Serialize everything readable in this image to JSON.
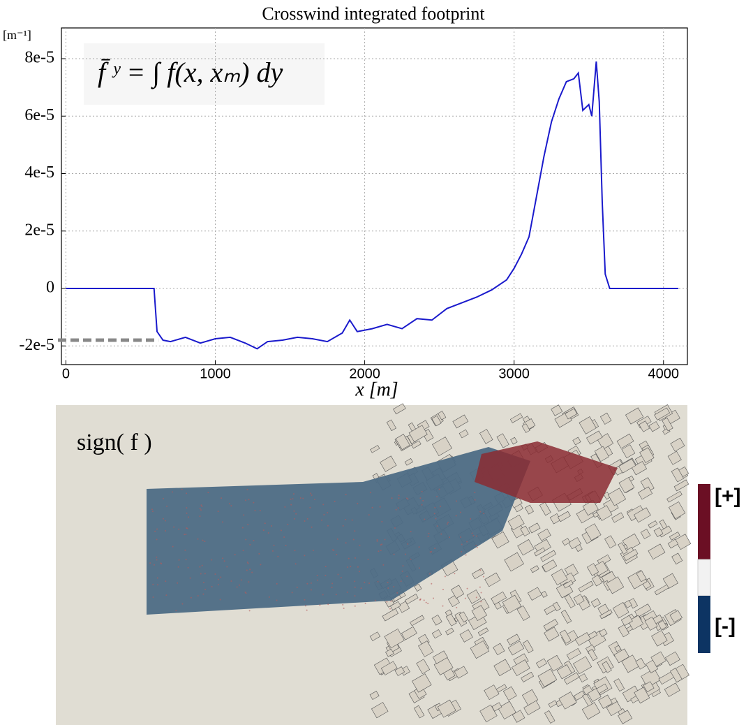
{
  "chart_data": {
    "type": "line",
    "title": "Crosswind integrated footprint",
    "y_unit_label": "[m⁻¹]",
    "x_label": "x  [m]",
    "formula": "f̄ ʸ = ∫ f(x, xₘ) dy",
    "xlim": [
      -30,
      4160
    ],
    "ylim": [
      -2.65e-05,
      9.07e-05
    ],
    "xticks": [
      0,
      1000,
      2000,
      3000,
      4000
    ],
    "yticks": [
      {
        "value": -2e-05,
        "label": "-2e-5"
      },
      0,
      {
        "value": 2e-05,
        "label": "2e-5"
      },
      {
        "value": 4e-05,
        "label": "4e-5"
      },
      {
        "value": 6e-05,
        "label": "6e-5"
      },
      {
        "value": 8e-05,
        "label": "8e-5"
      }
    ],
    "grid": true,
    "x": [
      0,
      590,
      610,
      650,
      700,
      800,
      900,
      1000,
      1100,
      1200,
      1280,
      1350,
      1450,
      1550,
      1650,
      1750,
      1850,
      1900,
      1950,
      2050,
      2150,
      2250,
      2350,
      2450,
      2550,
      2650,
      2750,
      2850,
      2950,
      3000,
      3050,
      3100,
      3150,
      3200,
      3250,
      3300,
      3350,
      3400,
      3430,
      3460,
      3500,
      3520,
      3550,
      3570,
      3590,
      3610,
      3640,
      4100
    ],
    "series": [
      {
        "color": "#1a1acc",
        "values": [
          0,
          0,
          -1.5e-05,
          -1.8e-05,
          -1.85e-05,
          -1.7e-05,
          -1.9e-05,
          -1.75e-05,
          -1.7e-05,
          -1.9e-05,
          -2.1e-05,
          -1.85e-05,
          -1.8e-05,
          -1.7e-05,
          -1.75e-05,
          -1.85e-05,
          -1.55e-05,
          -1.1e-05,
          -1.5e-05,
          -1.4e-05,
          -1.25e-05,
          -1.4e-05,
          -1.05e-05,
          -1.1e-05,
          -7e-06,
          -5e-06,
          -3e-06,
          -5e-07,
          3e-06,
          7e-06,
          1.2e-05,
          1.8e-05,
          3.2e-05,
          4.6e-05,
          5.8e-05,
          6.6e-05,
          7.2e-05,
          7.3e-05,
          7.5e-05,
          6.2e-05,
          6.4e-05,
          6e-05,
          7.9e-05,
          6.5e-05,
          3e-05,
          5e-06,
          0,
          0
        ]
      }
    ],
    "reference": {
      "y": -1.8e-05,
      "x_end": 620,
      "color": "#888888"
    }
  },
  "map": {
    "label": "sign( f )",
    "colorbar": {
      "plus": "[+]",
      "minus": "[-]"
    }
  }
}
